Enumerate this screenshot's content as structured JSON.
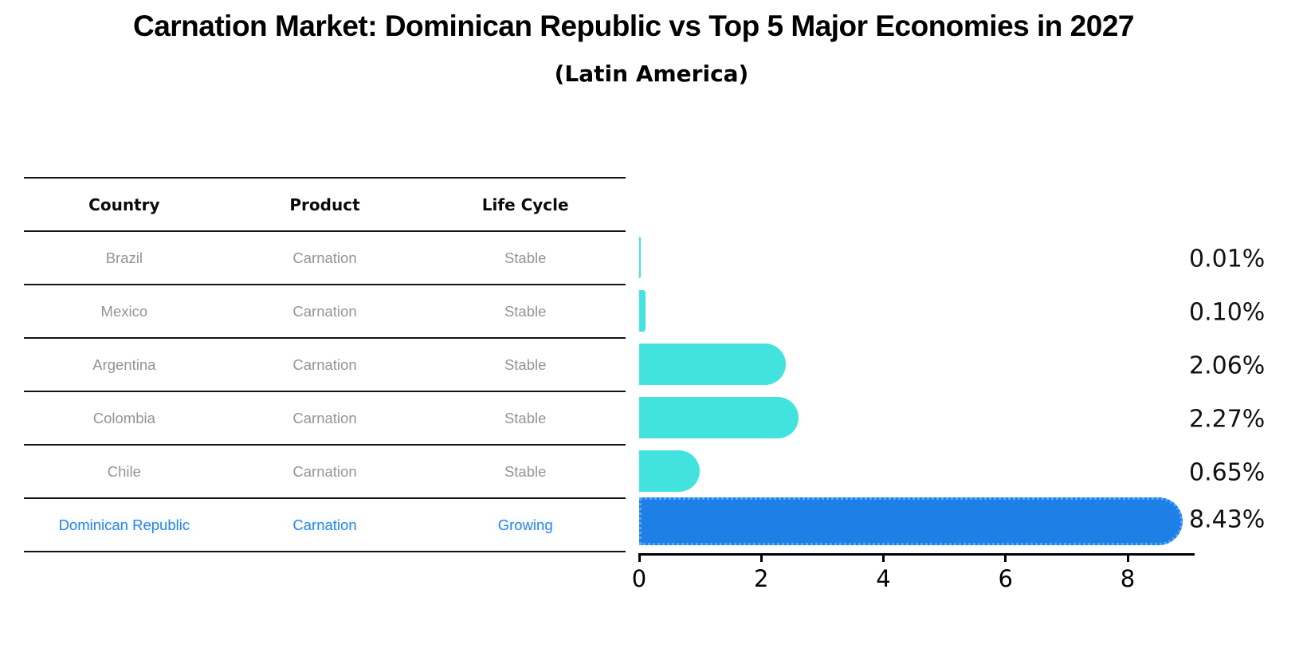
{
  "title": "Carnation Market: Dominican Republic vs Top 5 Major Economies in 2027",
  "subtitle": "(Latin America)",
  "table": {
    "headers": [
      "Country",
      "Product",
      "Life Cycle"
    ],
    "rows": [
      {
        "country": "Brazil",
        "product": "Carnation",
        "life_cycle": "Stable",
        "highlight": false
      },
      {
        "country": "Mexico",
        "product": "Carnation",
        "life_cycle": "Stable",
        "highlight": false
      },
      {
        "country": "Argentina",
        "product": "Carnation",
        "life_cycle": "Stable",
        "highlight": false
      },
      {
        "country": "Colombia",
        "product": "Carnation",
        "life_cycle": "Stable",
        "highlight": false
      },
      {
        "country": "Chile",
        "product": "Carnation",
        "life_cycle": "Stable",
        "highlight": false
      },
      {
        "country": "Dominican Republic",
        "product": "Carnation",
        "life_cycle": "Growing",
        "highlight": true
      }
    ]
  },
  "chart_data": {
    "type": "bar",
    "orientation": "horizontal",
    "categories": [
      "Brazil",
      "Mexico",
      "Argentina",
      "Colombia",
      "Chile",
      "Dominican Republic"
    ],
    "values": [
      0.01,
      0.1,
      2.06,
      2.27,
      0.65,
      8.43
    ],
    "value_labels": [
      "0.01%",
      "0.10%",
      "2.06%",
      "2.27%",
      "0.65%",
      "8.43%"
    ],
    "title": "Carnation Market: Dominican Republic vs Top 5 Major Economies in 2027 (Latin America)",
    "xlabel": "",
    "ylabel": "",
    "x_ticks": [
      0,
      2,
      4,
      6,
      8
    ],
    "xlim": [
      0,
      9.1
    ],
    "grid": false,
    "legend": "none",
    "highlight_index": 5,
    "highlight_style": "dotted-outline",
    "bar_color_default": "#42e3de",
    "bar_color_highlight": "#1e80e6"
  },
  "colors": {
    "teal_bar": "#42e3de",
    "blue_bar": "#1e80e6",
    "blue_bar_dots": "#55aaf2",
    "row_text": "#949494",
    "highlight_text": "#2e86de",
    "header_text": "#0a0a0a",
    "axis": "#000000",
    "background": "#ffffff"
  }
}
